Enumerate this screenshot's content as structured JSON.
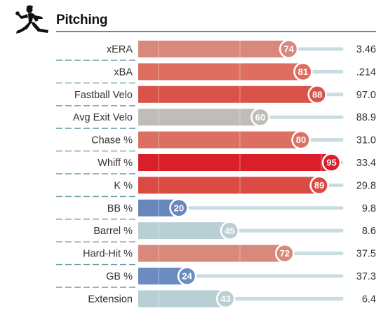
{
  "header": {
    "title": "Pitching",
    "icon": "pitcher-silhouette-icon"
  },
  "colors": {
    "rule": "#5f8f98",
    "track": "#c9dde0"
  },
  "chart_data": {
    "type": "bar",
    "orientation": "horizontal",
    "xlim": [
      0,
      100
    ],
    "categories": [
      "xERA",
      "xBA",
      "Fastball Velo",
      "Avg Exit Velo",
      "Chase %",
      "Whiff %",
      "K %",
      "BB %",
      "Barrel %",
      "Hard-Hit %",
      "GB %",
      "Extension"
    ],
    "percentiles": [
      74,
      81,
      88,
      60,
      80,
      95,
      89,
      20,
      45,
      72,
      24,
      43
    ],
    "stat_values": [
      "3.46",
      ".214",
      "97.0",
      "88.9",
      "31.0",
      "33.4",
      "29.8",
      "9.8",
      "8.6",
      "37.5",
      "37.3",
      "6.4"
    ],
    "bar_colors": [
      "#d9887c",
      "#dd6e60",
      "#d9534b",
      "#c0bcb7",
      "#dd6f62",
      "#d81f2a",
      "#da4b44",
      "#6887bd",
      "#b8cfd4",
      "#d9887c",
      "#6b8cc1",
      "#b8cfd4"
    ]
  }
}
